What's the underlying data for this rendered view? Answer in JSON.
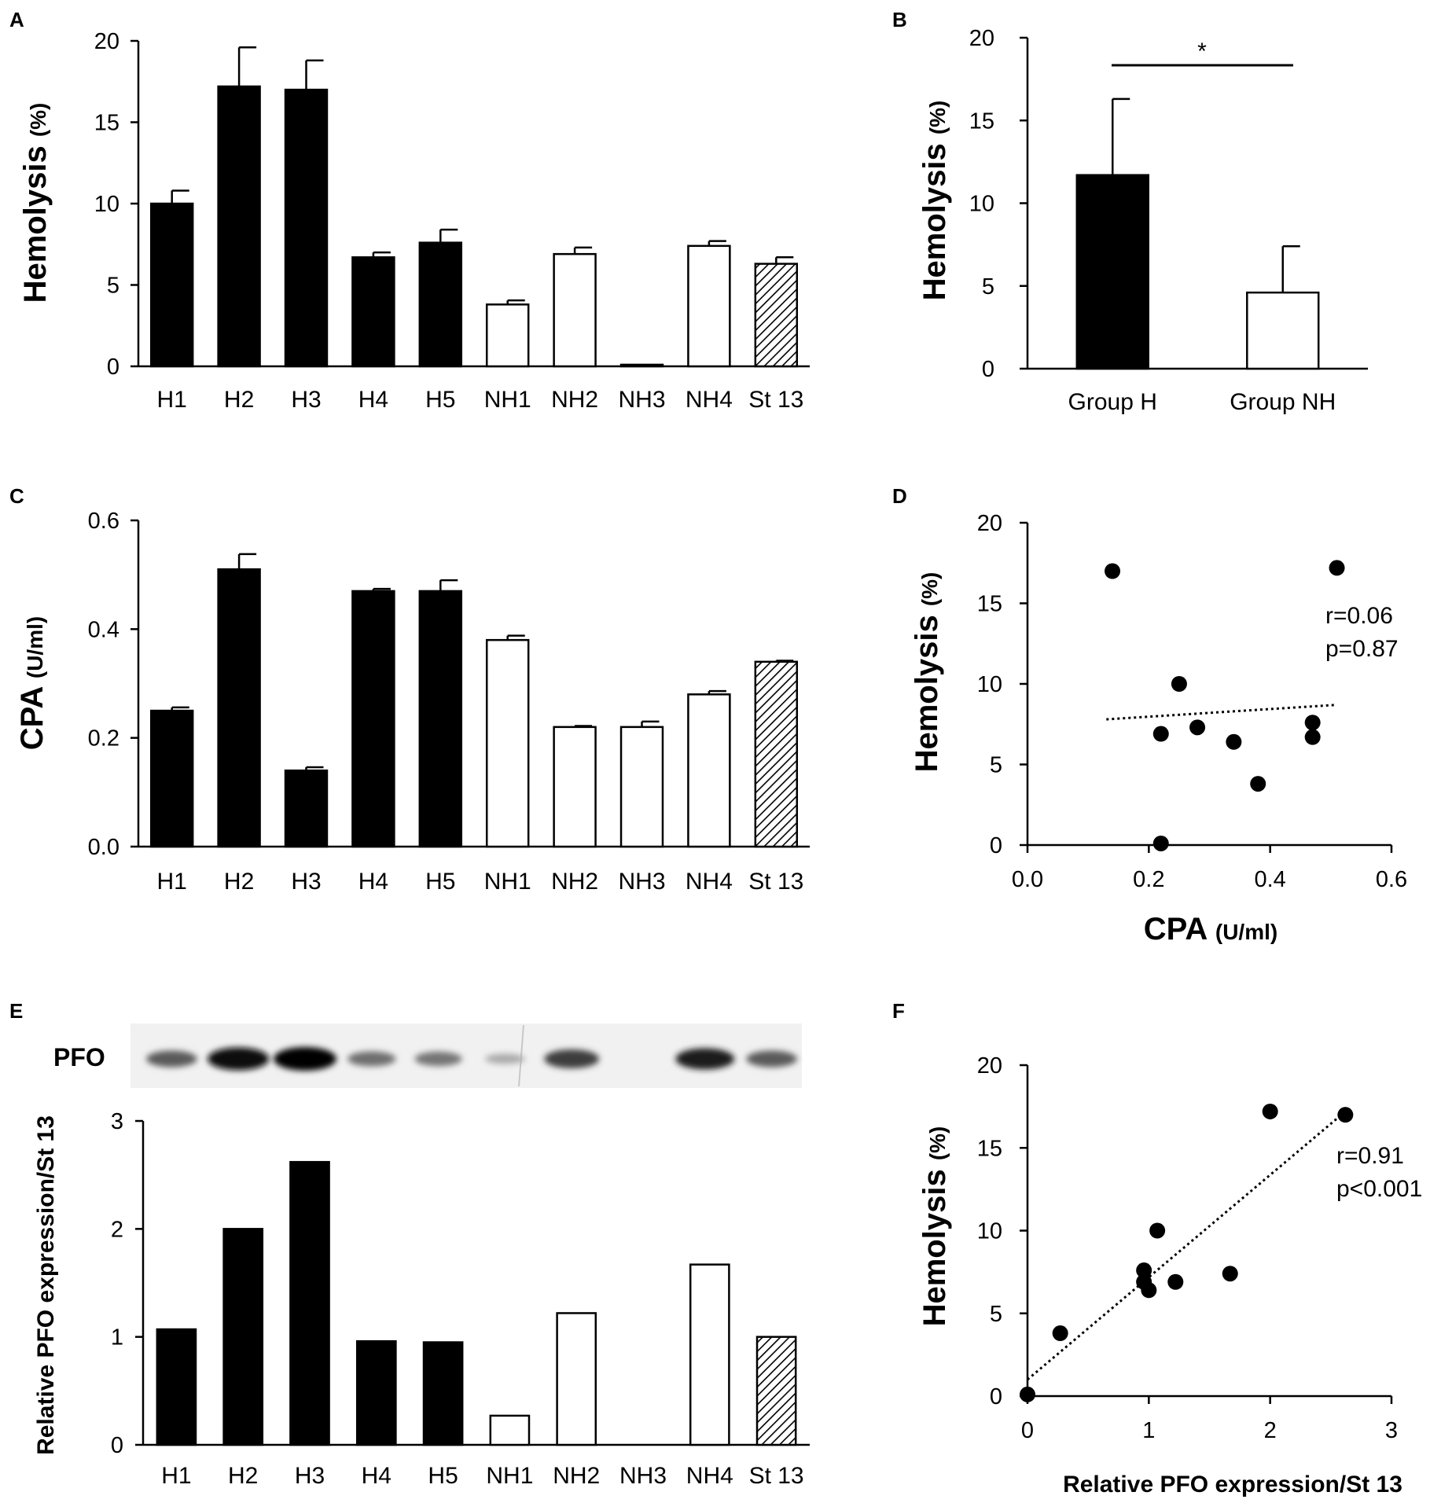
{
  "colors": {
    "group_h": "#000000",
    "group_nh": "#ffffff",
    "reference": "hatched",
    "blot_background": "#f1f1f1"
  },
  "chart_data": [
    {
      "panel": "A",
      "type": "bar",
      "categories": [
        "H1",
        "H2",
        "H3",
        "H4",
        "H5",
        "NH1",
        "NH2",
        "NH3",
        "NH4",
        "St 13"
      ],
      "values": [
        10.0,
        17.2,
        17.0,
        6.7,
        7.6,
        3.8,
        6.9,
        0.1,
        7.4,
        6.3
      ],
      "errors": [
        0.8,
        2.4,
        1.8,
        0.3,
        0.8,
        0.25,
        0.4,
        0,
        0.3,
        0.4
      ],
      "fills": [
        "black",
        "black",
        "black",
        "black",
        "black",
        "white",
        "white",
        "white",
        "white",
        "hatch"
      ],
      "ylabel": "Hemolysis",
      "ylabel_unit": "(%)",
      "ylim": [
        0,
        20
      ],
      "yticks": [
        "0",
        "5",
        "10",
        "15",
        "20"
      ]
    },
    {
      "panel": "B",
      "type": "bar",
      "categories": [
        "Group H",
        "Group NH"
      ],
      "values": [
        11.7,
        4.6
      ],
      "errors": [
        4.6,
        2.8
      ],
      "fills": [
        "black",
        "white"
      ],
      "significance": "*",
      "ylabel": "Hemolysis",
      "ylabel_unit": "(%)",
      "ylim": [
        0,
        20
      ],
      "yticks": [
        "0",
        "5",
        "10",
        "15",
        "20"
      ]
    },
    {
      "panel": "C",
      "type": "bar",
      "categories": [
        "H1",
        "H2",
        "H3",
        "H4",
        "H5",
        "NH1",
        "NH2",
        "NH3",
        "NH4",
        "St 13"
      ],
      "values": [
        0.25,
        0.51,
        0.14,
        0.47,
        0.47,
        0.38,
        0.22,
        0.22,
        0.28,
        0.34
      ],
      "errors": [
        0.006,
        0.028,
        0.006,
        0.004,
        0.02,
        0.008,
        0.002,
        0.01,
        0.006,
        0.002
      ],
      "fills": [
        "black",
        "black",
        "black",
        "black",
        "black",
        "white",
        "white",
        "white",
        "white",
        "hatch"
      ],
      "ylabel": "CPA",
      "ylabel_unit": "(U/ml)",
      "ylim": [
        0,
        0.6
      ],
      "yticks": [
        "0.0",
        "0.2",
        "0.4",
        "0.6"
      ]
    },
    {
      "panel": "D",
      "type": "scatter",
      "points": [
        [
          0.14,
          17.0
        ],
        [
          0.51,
          17.2
        ],
        [
          0.25,
          10.0
        ],
        [
          0.22,
          6.9
        ],
        [
          0.28,
          7.3
        ],
        [
          0.34,
          6.4
        ],
        [
          0.47,
          7.6
        ],
        [
          0.47,
          6.7
        ],
        [
          0.38,
          3.8
        ],
        [
          0.22,
          0.1
        ]
      ],
      "trendline": [
        [
          0.13,
          7.8
        ],
        [
          0.51,
          8.7
        ]
      ],
      "stats": [
        "r=0.06",
        "p=0.87"
      ],
      "xlabel": "CPA",
      "xlabel_unit": "(U/ml)",
      "ylabel": "Hemolysis",
      "ylabel_unit": "(%)",
      "xlim": [
        0,
        0.6
      ],
      "ylim": [
        0,
        20
      ],
      "xticks": [
        "0.0",
        "0.2",
        "0.4",
        "0.6"
      ],
      "yticks": [
        "0",
        "5",
        "10",
        "15",
        "20"
      ]
    },
    {
      "panel": "E",
      "type": "bar",
      "blot_label": "PFO",
      "band_intensity": [
        0.55,
        0.95,
        1.0,
        0.45,
        0.42,
        0.15,
        0.7,
        0,
        0.85,
        0.55
      ],
      "categories": [
        "H1",
        "H2",
        "H3",
        "H4",
        "H5",
        "NH1",
        "NH2",
        "NH3",
        "NH4",
        "St 13"
      ],
      "values": [
        1.07,
        2.0,
        2.62,
        0.96,
        0.95,
        0.27,
        1.22,
        0,
        1.67,
        1.0
      ],
      "fills": [
        "black",
        "black",
        "black",
        "black",
        "black",
        "white",
        "white",
        "white",
        "white",
        "hatch"
      ],
      "ylabel": "Relative PFO expression/St 13",
      "ylim": [
        0,
        3
      ],
      "yticks": [
        "0",
        "1",
        "2",
        "3"
      ]
    },
    {
      "panel": "F",
      "type": "scatter",
      "points": [
        [
          1.07,
          10.0
        ],
        [
          2.0,
          17.2
        ],
        [
          2.62,
          17.0
        ],
        [
          0.96,
          6.9
        ],
        [
          0.96,
          7.6
        ],
        [
          1.0,
          6.4
        ],
        [
          1.22,
          6.9
        ],
        [
          1.67,
          7.4
        ],
        [
          0.27,
          3.8
        ],
        [
          0.0,
          0.1
        ]
      ],
      "trendline": [
        [
          0.0,
          1.0
        ],
        [
          2.62,
          17.2
        ]
      ],
      "stats": [
        "r=0.91",
        "p<0.001"
      ],
      "xlabel": "Relative PFO expression/St 13",
      "ylabel": "Hemolysis",
      "ylabel_unit": "(%)",
      "xlim": [
        0,
        3
      ],
      "ylim": [
        0,
        20
      ],
      "xticks": [
        "0",
        "1",
        "2",
        "3"
      ],
      "yticks": [
        "0",
        "5",
        "10",
        "15",
        "20"
      ]
    }
  ]
}
